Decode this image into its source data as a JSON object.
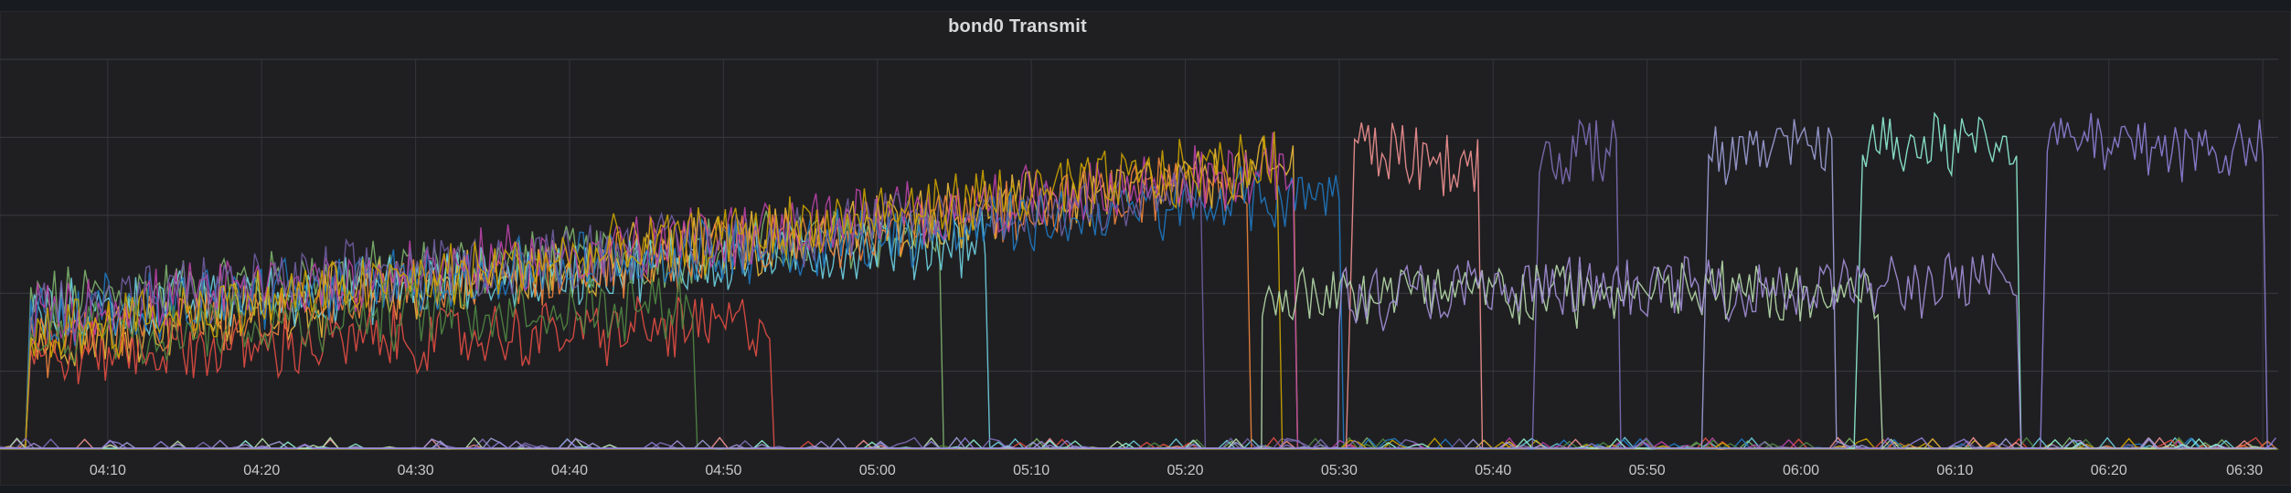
{
  "panel": {
    "title": "bond0 Transmit"
  },
  "chart_data": {
    "type": "line",
    "title": "bond0 Transmit",
    "xlabel": "",
    "ylabel": "",
    "x_ticks": [
      "04:10",
      "04:20",
      "04:30",
      "04:40",
      "04:50",
      "05:00",
      "05:10",
      "05:20",
      "05:30",
      "05:40",
      "05:50",
      "06:00",
      "06:10",
      "06:20",
      "06:30"
    ],
    "x_range": [
      "04:03",
      "06:31"
    ],
    "y_range": [
      0,
      5
    ],
    "grid": true,
    "legend": "none",
    "series_description": "many overlapping host series; values read as relative level (0-5 gridline units)",
    "series": [
      {
        "color": "#7eb26d",
        "start": "04:05",
        "end": "05:04",
        "level_start": 1.9,
        "level_end": 2.8
      },
      {
        "color": "#eab839",
        "start": "04:05",
        "end": "05:27",
        "level_start": 1.4,
        "level_end": 3.6
      },
      {
        "color": "#6ed0e0",
        "start": "04:05",
        "end": "05:07",
        "level_start": 1.7,
        "level_end": 2.7
      },
      {
        "color": "#ef843c",
        "start": "04:05",
        "end": "05:24",
        "level_start": 1.3,
        "level_end": 3.5
      },
      {
        "color": "#e24d42",
        "start": "04:05",
        "end": "04:53",
        "level_start": 1.2,
        "level_end": 1.6
      },
      {
        "color": "#1f78c1",
        "start": "04:05",
        "end": "05:30",
        "level_start": 1.7,
        "level_end": 3.3
      },
      {
        "color": "#ba43a9",
        "start": "04:05",
        "end": "05:27",
        "level_start": 1.7,
        "level_end": 3.6
      },
      {
        "color": "#705da0",
        "start": "04:05",
        "end": "05:21",
        "level_start": 1.8,
        "level_end": 3.3
      },
      {
        "color": "#508642",
        "start": "04:05",
        "end": "04:48",
        "level_start": 1.5,
        "level_end": 1.9
      },
      {
        "color": "#cca300",
        "start": "04:05",
        "end": "05:26",
        "level_start": 1.5,
        "level_end": 3.7
      },
      {
        "color": "#f29191",
        "start": "05:31",
        "end": "05:39",
        "level_start": 3.9,
        "level_end": 3.6
      },
      {
        "color": "#806eb7",
        "start": "05:43",
        "end": "05:48",
        "level_start": 3.8,
        "level_end": 3.8
      },
      {
        "color": "#9da0d6",
        "start": "05:54",
        "end": "06:02",
        "level_start": 3.8,
        "level_end": 3.9
      },
      {
        "color": "#8ff0d1",
        "start": "06:04",
        "end": "06:14",
        "level_start": 3.9,
        "level_end": 3.9
      },
      {
        "color": "#b7dbab",
        "start": "05:25",
        "end": "06:05",
        "level_start": 2.0,
        "level_end": 2.0
      },
      {
        "color": "#a48fd8",
        "start": "05:30",
        "end": "06:14",
        "level_start": 2.0,
        "level_end": 2.1
      },
      {
        "color": "#8f7fd6",
        "start": "06:16",
        "end": "06:30",
        "level_start": 4.0,
        "level_end": 3.8
      }
    ]
  }
}
